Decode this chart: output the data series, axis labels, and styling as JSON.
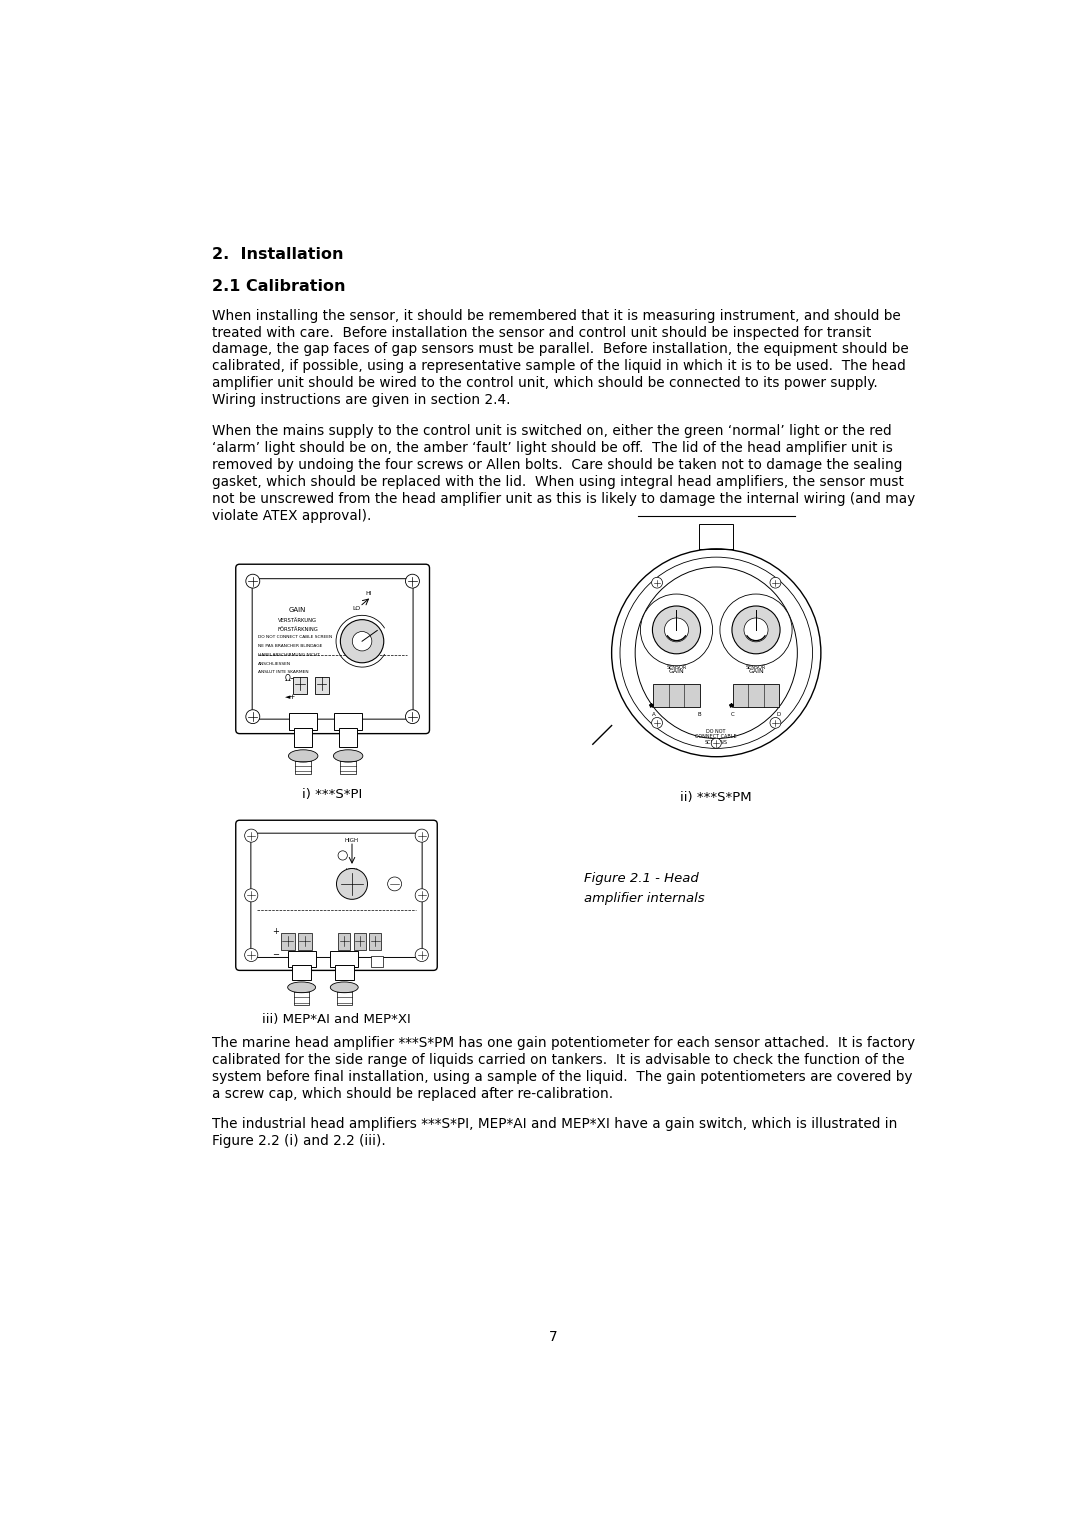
{
  "bg_color": "#ffffff",
  "text_color": "#000000",
  "heading1": "2.  Installation",
  "heading2": "2.1 Calibration",
  "para1_lines": [
    "When installing the sensor, it should be remembered that it is measuring instrument, and should be",
    "treated with care.  Before installation the sensor and control unit should be inspected for transit",
    "damage, the gap faces of gap sensors must be parallel.  Before installation, the equipment should be",
    "calibrated, if possible, using a representative sample of the liquid in which it is to be used.  The head",
    "amplifier unit should be wired to the control unit, which should be connected to its power supply.",
    "Wiring instructions are given in section 2.4."
  ],
  "para2_lines": [
    "When the mains supply to the control unit is switched on, either the green ‘normal’ light or the red",
    "‘alarm’ light should be on, the amber ‘fault’ light should be off.  The lid of the head amplifier unit is",
    "removed by undoing the four screws or Allen bolts.  Care should be taken not to damage the sealing",
    "gasket, which should be replaced with the lid.  When using integral head amplifiers, the sensor must",
    "not be unscrewed from the head amplifier unit as this is likely to damage the internal wiring (and may",
    "violate ATEX approval)."
  ],
  "caption1": "i) ***S*PI",
  "caption2": "ii) ***S*PM",
  "caption3": "iii) MEP*AI and MEP*XI",
  "figure_caption_line1": "Figure 2.1 - Head",
  "figure_caption_line2": "amplifier internals",
  "para3_lines": [
    "The marine head amplifier ***S*PM has one gain potentiometer for each sensor attached.  It is factory",
    "calibrated for the side range of liquids carried on tankers.  It is advisable to check the function of the",
    "system before final installation, using a sample of the liquid.  The gain potentiometers are covered by",
    "a screw cap, which should be replaced after re-calibration."
  ],
  "para4_lines": [
    "The industrial head amplifiers ***S*PI, MEP*AI and MEP*XI have a gain switch, which is illustrated in",
    "Figure 2.2 (i) and 2.2 (iii)."
  ],
  "page_number": "7"
}
